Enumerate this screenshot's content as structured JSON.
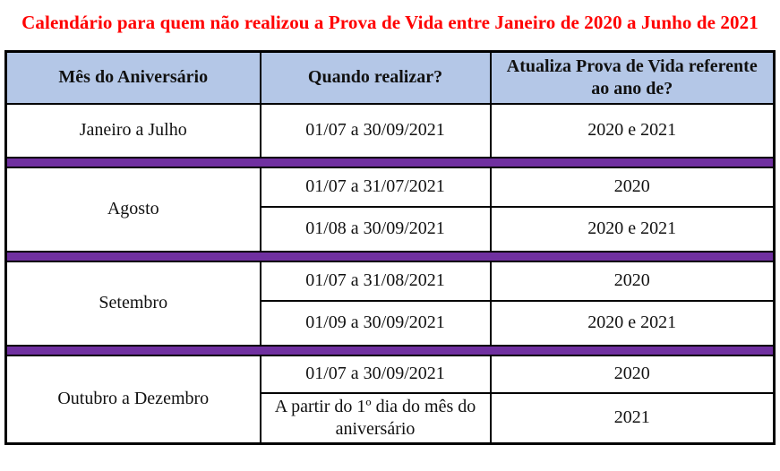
{
  "title": "Calendário para quem não realizou a Prova de Vida entre Janeiro de 2020 a Junho de 2021",
  "colors": {
    "title": "#ff0000",
    "header_bg": "#b4c7e7",
    "separator": "#7030a0",
    "border": "#000000"
  },
  "table": {
    "headers": [
      "Mês do Aniversário",
      "Quando realizar?",
      "Atualiza Prova de Vida referente ao ano de?"
    ],
    "sections": [
      {
        "month": "Janeiro a Julho",
        "rows": [
          {
            "when": "01/07 a 30/09/2021",
            "year": "2020 e 2021"
          }
        ]
      },
      {
        "month": "Agosto",
        "rows": [
          {
            "when": "01/07 a 31/07/2021",
            "year": "2020"
          },
          {
            "when": "01/08 a 30/09/2021",
            "year": "2020 e 2021"
          }
        ]
      },
      {
        "month": "Setembro",
        "rows": [
          {
            "when": "01/07 a 31/08/2021",
            "year": "2020"
          },
          {
            "when": "01/09 a 30/09/2021",
            "year": "2020 e 2021"
          }
        ]
      },
      {
        "month": "Outubro a Dezembro",
        "rows": [
          {
            "when": "01/07 a 30/09/2021",
            "year": "2020"
          },
          {
            "when": "A partir do 1º dia do mês do aniversário",
            "year": "2021"
          }
        ]
      }
    ]
  }
}
